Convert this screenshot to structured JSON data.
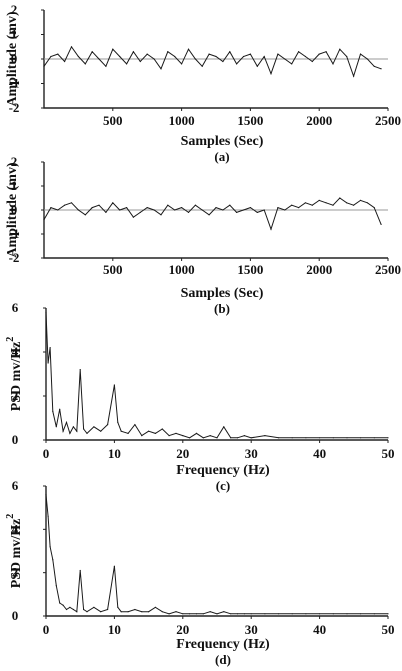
{
  "chart_data": [
    {
      "type": "line",
      "caption": "(a)",
      "xlabel": "Samples (Sec)",
      "ylabel": "Amplitude (mv)",
      "xlim": [
        0,
        2500
      ],
      "ylim": [
        -2,
        2
      ],
      "xticks": [
        "500",
        "1000",
        "1500",
        "2000",
        "2500"
      ],
      "yticks": [
        "2",
        "1",
        "0",
        "-1",
        "-2"
      ],
      "series": [
        {
          "x": [
            0,
            50,
            100,
            150,
            200,
            250,
            300,
            350,
            400,
            450,
            500,
            550,
            600,
            650,
            700,
            750,
            800,
            850,
            900,
            950,
            1000,
            1050,
            1100,
            1150,
            1200,
            1250,
            1300,
            1350,
            1400,
            1450,
            1500,
            1550,
            1600,
            1650,
            1700,
            1750,
            1800,
            1850,
            1900,
            1950,
            2000,
            2050,
            2100,
            2150,
            2200,
            2250,
            2300,
            2350,
            2400,
            2450
          ],
          "y": [
            -0.3,
            0.1,
            0.2,
            -0.1,
            0.5,
            0.1,
            -0.2,
            0.3,
            0.0,
            -0.3,
            0.4,
            0.1,
            -0.2,
            0.3,
            -0.1,
            0.2,
            0.0,
            -0.4,
            0.3,
            0.1,
            -0.2,
            0.4,
            0.0,
            -0.3,
            0.2,
            0.1,
            -0.1,
            0.3,
            -0.2,
            0.1,
            0.2,
            -0.3,
            0.1,
            -0.6,
            0.2,
            0.0,
            -0.2,
            0.3,
            0.1,
            -0.1,
            0.2,
            0.3,
            -0.2,
            0.4,
            0.1,
            -0.7,
            0.2,
            0.0,
            -0.3,
            -0.4
          ]
        }
      ]
    },
    {
      "type": "line",
      "caption": "(b)",
      "xlabel": "Samples (Sec)",
      "ylabel": "Amplitude (mv)",
      "xlim": [
        0,
        2500
      ],
      "ylim": [
        -2,
        2
      ],
      "xticks": [
        "500",
        "1000",
        "1500",
        "2000",
        "2500"
      ],
      "yticks": [
        "2",
        "1",
        "0",
        "-1",
        "-2"
      ],
      "series": [
        {
          "x": [
            0,
            50,
            100,
            150,
            200,
            250,
            300,
            350,
            400,
            450,
            500,
            550,
            600,
            650,
            700,
            750,
            800,
            850,
            900,
            950,
            1000,
            1050,
            1100,
            1150,
            1200,
            1250,
            1300,
            1350,
            1400,
            1450,
            1500,
            1550,
            1600,
            1650,
            1700,
            1750,
            1800,
            1850,
            1900,
            1950,
            2000,
            2050,
            2100,
            2150,
            2200,
            2250,
            2300,
            2350,
            2400,
            2450
          ],
          "y": [
            -0.4,
            0.1,
            0.0,
            0.2,
            0.3,
            0.0,
            -0.2,
            0.1,
            0.2,
            -0.1,
            0.3,
            0.0,
            0.1,
            -0.3,
            -0.1,
            0.1,
            0.0,
            -0.2,
            0.2,
            0.0,
            0.1,
            -0.1,
            0.2,
            0.0,
            -0.2,
            0.1,
            0.0,
            0.2,
            -0.1,
            0.0,
            0.1,
            -0.1,
            0.0,
            -0.8,
            0.1,
            0.0,
            0.2,
            0.1,
            0.3,
            0.2,
            0.4,
            0.3,
            0.2,
            0.5,
            0.3,
            0.2,
            0.4,
            0.3,
            0.1,
            -0.6
          ]
        }
      ]
    },
    {
      "type": "line",
      "caption": "(c)",
      "xlabel": "Frequency (Hz)",
      "ylabel": "PSD mv/Hz",
      "ylabel_sup": "2",
      "xlim": [
        0,
        50
      ],
      "ylim": [
        0,
        6
      ],
      "xticks": [
        "0",
        "10",
        "20",
        "30",
        "40",
        "50"
      ],
      "yticks": [
        "6",
        "4",
        "2",
        "0"
      ],
      "series": [
        {
          "x": [
            0,
            0.3,
            0.6,
            1,
            1.5,
            2,
            2.5,
            3,
            3.5,
            4,
            4.5,
            5,
            5.5,
            6,
            7,
            8,
            9,
            10,
            10.5,
            11,
            12,
            13,
            14,
            15,
            16,
            17,
            18,
            19,
            20,
            21,
            22,
            23,
            24,
            25,
            26,
            27,
            28,
            29,
            30,
            32,
            34,
            36,
            38,
            40,
            42,
            44,
            46,
            48,
            50
          ],
          "y": [
            5.8,
            3.5,
            4.2,
            1.3,
            0.6,
            1.4,
            0.4,
            0.8,
            0.3,
            0.6,
            0.4,
            3.2,
            0.5,
            0.3,
            0.6,
            0.4,
            0.7,
            2.5,
            0.8,
            0.4,
            0.3,
            0.7,
            0.2,
            0.4,
            0.3,
            0.5,
            0.2,
            0.3,
            0.2,
            0.1,
            0.3,
            0.1,
            0.2,
            0.1,
            0.6,
            0.1,
            0.1,
            0.2,
            0.1,
            0.2,
            0.1,
            0.1,
            0.1,
            0.1,
            0.1,
            0.1,
            0.1,
            0.1,
            0.1
          ]
        }
      ]
    },
    {
      "type": "line",
      "caption": "(d)",
      "xlabel": "Frequency (Hz)",
      "ylabel": "PSD mv/Hz",
      "ylabel_sup": "2",
      "xlim": [
        0,
        50
      ],
      "ylim": [
        0,
        6
      ],
      "xticks": [
        "0",
        "10",
        "20",
        "30",
        "40",
        "50"
      ],
      "yticks": [
        "6",
        "4",
        "2",
        "0"
      ],
      "series": [
        {
          "x": [
            0,
            0.3,
            0.6,
            1,
            1.5,
            2,
            2.5,
            3,
            3.5,
            4,
            4.5,
            5,
            5.5,
            6,
            7,
            8,
            9,
            10,
            10.5,
            11,
            12,
            13,
            14,
            15,
            16,
            17,
            18,
            19,
            20,
            21,
            22,
            23,
            24,
            25,
            26,
            27,
            28,
            29,
            30,
            32,
            34,
            36,
            38,
            40,
            42,
            44,
            46,
            48,
            50
          ],
          "y": [
            5.6,
            4.6,
            3.2,
            2.6,
            1.4,
            0.6,
            0.5,
            0.3,
            0.4,
            0.3,
            0.2,
            2.1,
            0.3,
            0.2,
            0.4,
            0.2,
            0.3,
            2.3,
            0.4,
            0.2,
            0.2,
            0.3,
            0.2,
            0.2,
            0.4,
            0.2,
            0.1,
            0.2,
            0.1,
            0.1,
            0.1,
            0.1,
            0.2,
            0.1,
            0.2,
            0.1,
            0.1,
            0.1,
            0.1,
            0.1,
            0.1,
            0.1,
            0.1,
            0.1,
            0.1,
            0.1,
            0.1,
            0.1,
            0.1
          ]
        }
      ]
    }
  ]
}
